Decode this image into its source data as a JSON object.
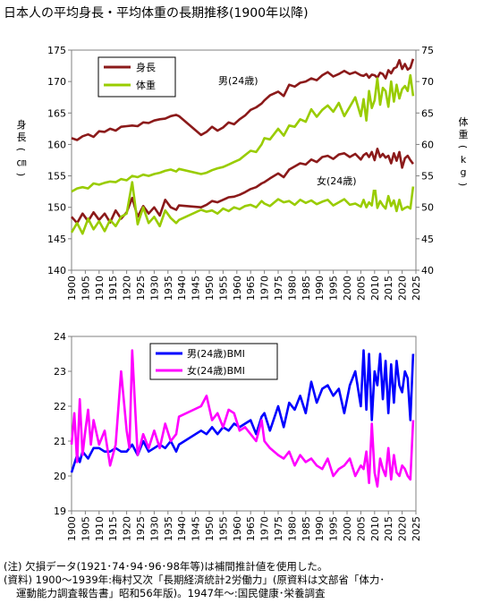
{
  "title": "日本人の平均身長・平均体重の長期推移(1900年以降)",
  "notes": [
    "(注) 欠損データ(1921･74･94･96･98年等)は補間推計値を使用した。",
    "(資料) 1900～1939年:梅村又次「長期経済統計2労働力」(原資料は文部省「体力･",
    "運動能力調査報告書」昭和56年版)。1947年～:国民健康･栄養調査"
  ],
  "chart_data": [
    {
      "type": "line",
      "title": "",
      "xlabel": "",
      "ylabel": "身長(㎝)",
      "y2label": "体重(kg)",
      "xlim": [
        1900,
        2025
      ],
      "xticks": [
        1900,
        1905,
        1910,
        1915,
        1920,
        1925,
        1930,
        1935,
        1940,
        1945,
        1950,
        1955,
        1960,
        1965,
        1970,
        1975,
        1980,
        1985,
        1990,
        1995,
        2000,
        2005,
        2010,
        2015,
        2020,
        2025
      ],
      "ylim": [
        140,
        175
      ],
      "yticks": [
        140,
        145,
        150,
        155,
        160,
        165,
        170,
        175
      ],
      "y2lim": [
        40,
        75
      ],
      "y2ticks": [
        40,
        45,
        50,
        55,
        60,
        65,
        70,
        75
      ],
      "grid": false,
      "legend_position": "top-left",
      "colors": {
        "height": "#8b1a1a",
        "weight": "#99cc00"
      },
      "legend": [
        "身長",
        "体重"
      ],
      "annotations": [
        "男(24歳)",
        "女(24歳)"
      ],
      "series": [
        {
          "name": "身長",
          "axis": "left",
          "group": "男(24歳)",
          "x": [
            1900,
            1902,
            1904,
            1906,
            1908,
            1910,
            1912,
            1914,
            1916,
            1918,
            1920,
            1922,
            1924,
            1926,
            1928,
            1930,
            1932,
            1934,
            1936,
            1938,
            1939,
            1947,
            1949,
            1951,
            1953,
            1955,
            1957,
            1959,
            1961,
            1963,
            1965,
            1967,
            1969,
            1970,
            1972,
            1975,
            1977,
            1979,
            1981,
            1983,
            1985,
            1987,
            1989,
            1991,
            1993,
            1995,
            1997,
            1999,
            2001,
            2003,
            2005,
            2006,
            2007,
            2008,
            2009,
            2010,
            2011,
            2012,
            2013,
            2014,
            2015,
            2016,
            2017,
            2018,
            2019,
            2020,
            2021,
            2022,
            2023,
            2024
          ],
          "y": [
            161.0,
            160.7,
            161.3,
            161.6,
            161.2,
            162.1,
            162.0,
            162.5,
            162.2,
            162.8,
            162.9,
            163.0,
            162.9,
            163.5,
            163.4,
            163.8,
            164.0,
            164.1,
            164.5,
            164.7,
            164.5,
            161.5,
            162.0,
            162.8,
            162.2,
            162.7,
            163.5,
            163.2,
            164.0,
            164.6,
            165.5,
            165.9,
            166.5,
            167.0,
            167.8,
            168.4,
            167.7,
            169.5,
            169.2,
            169.8,
            170.0,
            170.5,
            170.2,
            171.0,
            171.5,
            170.8,
            171.2,
            171.7,
            171.2,
            171.5,
            171.0,
            170.9,
            171.2,
            170.6,
            171.1,
            171.0,
            170.6,
            171.4,
            171.2,
            170.5,
            171.8,
            171.3,
            172.1,
            172.3,
            173.4,
            172.0,
            172.8,
            171.9,
            172.2,
            173.6
          ]
        },
        {
          "name": "体重",
          "axis": "right",
          "group": "男(24歳)",
          "x": [
            1900,
            1902,
            1904,
            1906,
            1908,
            1910,
            1912,
            1914,
            1916,
            1918,
            1920,
            1922,
            1924,
            1926,
            1928,
            1930,
            1932,
            1934,
            1936,
            1938,
            1939,
            1947,
            1949,
            1951,
            1953,
            1955,
            1957,
            1959,
            1961,
            1963,
            1965,
            1967,
            1969,
            1970,
            1972,
            1975,
            1977,
            1979,
            1981,
            1983,
            1985,
            1987,
            1989,
            1991,
            1993,
            1995,
            1997,
            1999,
            2001,
            2003,
            2005,
            2006,
            2007,
            2008,
            2009,
            2010,
            2011,
            2012,
            2013,
            2014,
            2015,
            2016,
            2017,
            2018,
            2019,
            2020,
            2021,
            2022,
            2023,
            2024
          ],
          "y": [
            52.5,
            53.0,
            53.2,
            53.0,
            53.8,
            53.6,
            53.9,
            54.1,
            54.0,
            54.5,
            54.3,
            55.0,
            54.8,
            55.2,
            55.0,
            55.3,
            55.5,
            55.8,
            56.0,
            55.7,
            56.1,
            55.3,
            55.5,
            55.9,
            56.2,
            56.4,
            56.8,
            57.2,
            57.6,
            58.3,
            59.0,
            58.8,
            60.0,
            61.0,
            60.8,
            62.5,
            61.4,
            63.0,
            62.8,
            64.0,
            63.6,
            65.6,
            64.4,
            65.5,
            66.2,
            65.2,
            66.6,
            64.5,
            66.0,
            67.5,
            64.5,
            67.2,
            63.8,
            68.5,
            65.8,
            67.0,
            70.5,
            66.3,
            69.0,
            68.5,
            66.0,
            70.0,
            66.8,
            69.5,
            67.3,
            68.8,
            69.3,
            68.5,
            71.0,
            67.7
          ]
        },
        {
          "name": "身長",
          "axis": "left",
          "group": "女(24歳)",
          "x": [
            1900,
            1902,
            1904,
            1906,
            1908,
            1910,
            1912,
            1914,
            1916,
            1918,
            1920,
            1922,
            1924,
            1926,
            1928,
            1930,
            1932,
            1934,
            1936,
            1938,
            1939,
            1947,
            1949,
            1951,
            1953,
            1955,
            1957,
            1959,
            1961,
            1963,
            1965,
            1967,
            1969,
            1970,
            1972,
            1975,
            1977,
            1979,
            1981,
            1983,
            1985,
            1987,
            1989,
            1991,
            1993,
            1995,
            1997,
            1999,
            2001,
            2003,
            2005,
            2006,
            2007,
            2008,
            2009,
            2010,
            2011,
            2012,
            2013,
            2014,
            2015,
            2016,
            2017,
            2018,
            2019,
            2020,
            2021,
            2022,
            2023,
            2024
          ],
          "y": [
            148.5,
            147.5,
            149.0,
            147.8,
            149.2,
            148.0,
            149.0,
            147.6,
            149.5,
            148.2,
            149.2,
            151.5,
            148.5,
            150.2,
            149.0,
            150.0,
            148.7,
            151.2,
            150.0,
            149.6,
            150.3,
            150.0,
            150.4,
            151.0,
            150.8,
            151.2,
            151.6,
            151.7,
            152.0,
            152.4,
            152.9,
            153.2,
            153.8,
            154.0,
            154.6,
            155.4,
            154.8,
            156.0,
            156.5,
            157.0,
            156.8,
            157.6,
            157.2,
            158.0,
            158.2,
            157.7,
            158.4,
            158.6,
            158.0,
            158.5,
            157.6,
            158.3,
            158.6,
            158.0,
            158.8,
            157.5,
            159.3,
            158.0,
            158.5,
            157.9,
            158.2,
            157.0,
            158.6,
            157.4,
            158.8,
            156.3,
            157.8,
            158.2,
            157.5,
            156.9
          ]
        },
        {
          "name": "体重",
          "axis": "right",
          "group": "女(24歳)",
          "x": [
            1900,
            1902,
            1904,
            1906,
            1908,
            1910,
            1912,
            1914,
            1916,
            1918,
            1920,
            1922,
            1924,
            1926,
            1928,
            1930,
            1932,
            1934,
            1936,
            1938,
            1939,
            1947,
            1949,
            1951,
            1953,
            1955,
            1957,
            1959,
            1961,
            1963,
            1965,
            1967,
            1969,
            1970,
            1972,
            1975,
            1977,
            1979,
            1981,
            1983,
            1985,
            1987,
            1989,
            1991,
            1993,
            1995,
            1997,
            1999,
            2001,
            2003,
            2005,
            2006,
            2007,
            2008,
            2009,
            2010,
            2011,
            2012,
            2013,
            2014,
            2015,
            2016,
            2017,
            2018,
            2019,
            2020,
            2021,
            2022,
            2023,
            2024
          ],
          "y": [
            46.0,
            47.5,
            45.8,
            48.2,
            46.5,
            47.8,
            46.2,
            48.0,
            47.0,
            48.5,
            49.0,
            54.0,
            47.3,
            50.0,
            47.5,
            48.5,
            47.0,
            49.5,
            48.3,
            47.5,
            48.0,
            49.6,
            49.3,
            49.5,
            49.0,
            49.8,
            49.4,
            50.0,
            49.7,
            50.2,
            50.4,
            50.0,
            51.0,
            50.6,
            50.2,
            51.3,
            50.8,
            51.0,
            50.4,
            51.2,
            50.7,
            51.1,
            50.5,
            50.9,
            51.2,
            50.3,
            50.8,
            51.3,
            50.4,
            50.6,
            50.1,
            51.2,
            50.0,
            50.8,
            50.3,
            53.5,
            49.9,
            51.0,
            50.3,
            49.8,
            51.8,
            50.2,
            51.1,
            49.4,
            51.2,
            49.6,
            49.9,
            50.1,
            49.8,
            53.3
          ]
        }
      ]
    },
    {
      "type": "line",
      "title": "",
      "xlabel": "",
      "ylabel": "",
      "xlim": [
        1900,
        2025
      ],
      "xticks": [
        1900,
        1905,
        1910,
        1915,
        1920,
        1925,
        1930,
        1935,
        1940,
        1945,
        1950,
        1955,
        1960,
        1965,
        1970,
        1975,
        1980,
        1985,
        1990,
        1995,
        2000,
        2005,
        2010,
        2015,
        2020,
        2025
      ],
      "ylim": [
        19,
        24
      ],
      "yticks": [
        19,
        20,
        21,
        22,
        23,
        24
      ],
      "grid": false,
      "legend_position": "top-left",
      "series": [
        {
          "name": "男(24歳)BMI",
          "color": "#0000ff",
          "x": [
            1900,
            1902,
            1903,
            1904,
            1906,
            1908,
            1910,
            1912,
            1914,
            1916,
            1918,
            1920,
            1922,
            1924,
            1926,
            1928,
            1930,
            1932,
            1934,
            1936,
            1938,
            1939,
            1947,
            1949,
            1951,
            1953,
            1955,
            1957,
            1959,
            1961,
            1963,
            1965,
            1967,
            1969,
            1970,
            1972,
            1975,
            1977,
            1979,
            1981,
            1983,
            1985,
            1987,
            1989,
            1991,
            1993,
            1995,
            1997,
            1999,
            2001,
            2003,
            2005,
            2006,
            2007,
            2008,
            2009,
            2010,
            2011,
            2012,
            2013,
            2014,
            2015,
            2016,
            2017,
            2018,
            2019,
            2020,
            2021,
            2022,
            2023,
            2024
          ],
          "y": [
            20.1,
            20.6,
            20.4,
            20.7,
            20.5,
            20.8,
            20.8,
            20.7,
            20.7,
            20.8,
            20.7,
            20.7,
            20.9,
            20.6,
            21.0,
            20.7,
            20.8,
            20.9,
            20.8,
            21.0,
            20.7,
            20.9,
            21.3,
            21.2,
            21.4,
            21.2,
            21.4,
            21.3,
            21.5,
            21.4,
            21.5,
            21.6,
            21.2,
            21.7,
            21.8,
            21.3,
            22.0,
            21.4,
            22.1,
            21.9,
            22.3,
            21.8,
            22.7,
            22.1,
            22.5,
            22.6,
            22.3,
            22.5,
            21.8,
            22.6,
            23.0,
            22.0,
            23.6,
            21.9,
            23.5,
            21.6,
            23.0,
            22.6,
            23.5,
            22.2,
            23.3,
            21.8,
            23.2,
            22.1,
            23.3,
            22.6,
            22.4,
            23.0,
            22.8,
            21.6,
            23.5
          ]
        },
        {
          "name": "女(24歳)BMI",
          "color": "#ff00ff",
          "x": [
            1900,
            1901,
            1902,
            1903,
            1904,
            1905,
            1906,
            1907,
            1908,
            1910,
            1912,
            1914,
            1916,
            1918,
            1920,
            1921,
            1922,
            1923,
            1924,
            1926,
            1928,
            1930,
            1932,
            1934,
            1936,
            1938,
            1939,
            1947,
            1949,
            1951,
            1953,
            1955,
            1957,
            1959,
            1961,
            1963,
            1965,
            1967,
            1969,
            1970,
            1972,
            1975,
            1977,
            1979,
            1981,
            1983,
            1985,
            1987,
            1989,
            1991,
            1993,
            1995,
            1997,
            1999,
            2001,
            2003,
            2005,
            2006,
            2007,
            2008,
            2009,
            2010,
            2011,
            2012,
            2013,
            2014,
            2015,
            2016,
            2017,
            2018,
            2019,
            2020,
            2021,
            2022,
            2023,
            2024
          ],
          "y": [
            20.9,
            21.8,
            20.4,
            22.2,
            20.6,
            21.3,
            21.9,
            20.9,
            21.6,
            20.9,
            21.3,
            20.3,
            20.9,
            23.0,
            21.3,
            20.8,
            23.6,
            22.1,
            20.6,
            21.2,
            20.8,
            21.3,
            20.8,
            21.5,
            21.0,
            21.2,
            21.7,
            22.0,
            22.3,
            21.6,
            21.8,
            21.4,
            21.9,
            21.8,
            21.3,
            21.4,
            21.2,
            21.0,
            21.6,
            21.0,
            20.8,
            20.6,
            20.5,
            20.7,
            20.3,
            20.6,
            20.4,
            20.5,
            20.3,
            20.2,
            20.5,
            20.0,
            20.2,
            20.3,
            20.5,
            20.0,
            20.3,
            20.2,
            20.7,
            19.8,
            21.5,
            20.1,
            19.7,
            20.5,
            20.2,
            20.0,
            20.8,
            19.9,
            20.6,
            20.1,
            20.0,
            20.3,
            20.2,
            20.0,
            19.9,
            21.6
          ]
        }
      ]
    }
  ]
}
